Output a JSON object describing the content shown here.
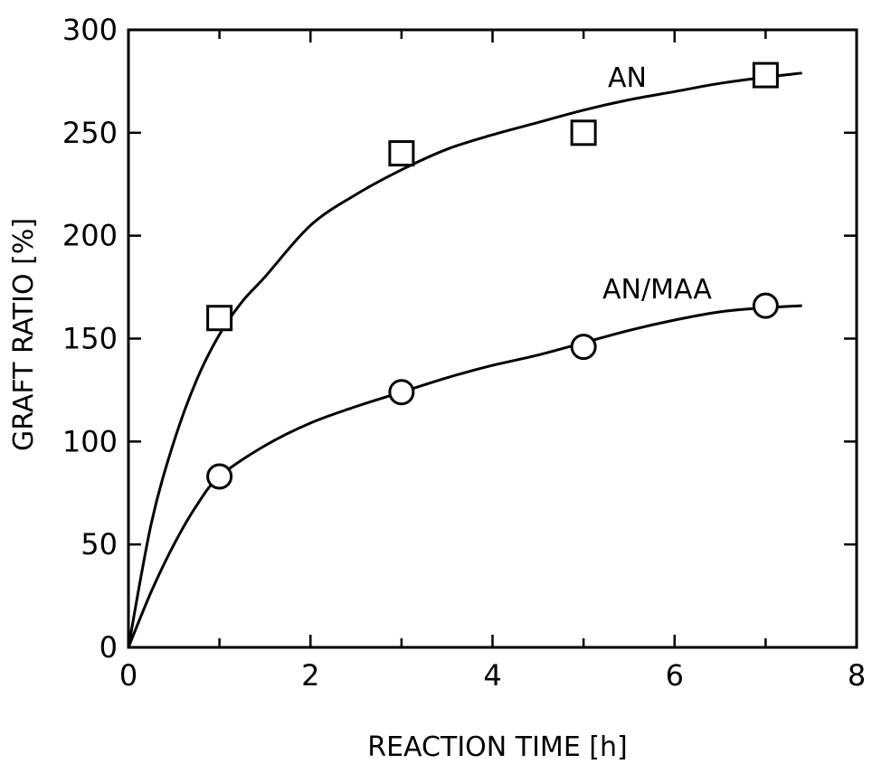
{
  "chart_data": {
    "type": "scatter",
    "xlabel": "REACTION TIME [h]",
    "ylabel": "GRAFT RATIO [%]",
    "xlim": [
      0,
      8
    ],
    "ylim": [
      0,
      300
    ],
    "xticks": [
      0,
      2,
      4,
      6,
      8
    ],
    "xtick_labels": [
      "0",
      "2",
      "4",
      "6",
      "8"
    ],
    "yticks": [
      0,
      50,
      100,
      150,
      200,
      250,
      300
    ],
    "ytick_labels": [
      "0",
      "50",
      "100",
      "150",
      "200",
      "250",
      "300"
    ],
    "minor_xticks": [
      1,
      3,
      5,
      7
    ],
    "grid": false,
    "series": [
      {
        "name": "AN",
        "marker": "square",
        "x": [
          1,
          3,
          5,
          7
        ],
        "y": [
          160,
          240,
          250,
          278
        ],
        "fit_x": [
          0,
          0.25,
          0.5,
          0.75,
          1,
          1.25,
          1.5,
          2,
          2.5,
          3,
          3.5,
          4,
          4.5,
          5,
          5.5,
          6,
          6.5,
          7,
          7.4
        ],
        "fit_y": [
          0,
          60,
          100,
          130,
          152,
          168,
          180,
          205,
          220,
          232,
          242,
          249,
          255,
          261,
          266,
          270,
          274,
          277,
          279
        ]
      },
      {
        "name": "AN/MAA",
        "marker": "circle",
        "x": [
          1,
          3,
          5,
          7
        ],
        "y": [
          83,
          124,
          146,
          166
        ],
        "fit_x": [
          0,
          0.25,
          0.5,
          0.75,
          1,
          1.5,
          2,
          2.5,
          3,
          3.5,
          4,
          4.5,
          5,
          5.5,
          6,
          6.5,
          7,
          7.4
        ],
        "fit_y": [
          0,
          27,
          50,
          69,
          83,
          98,
          109,
          117,
          124,
          131,
          137,
          142,
          148,
          154,
          159,
          163,
          165,
          166
        ]
      }
    ]
  }
}
